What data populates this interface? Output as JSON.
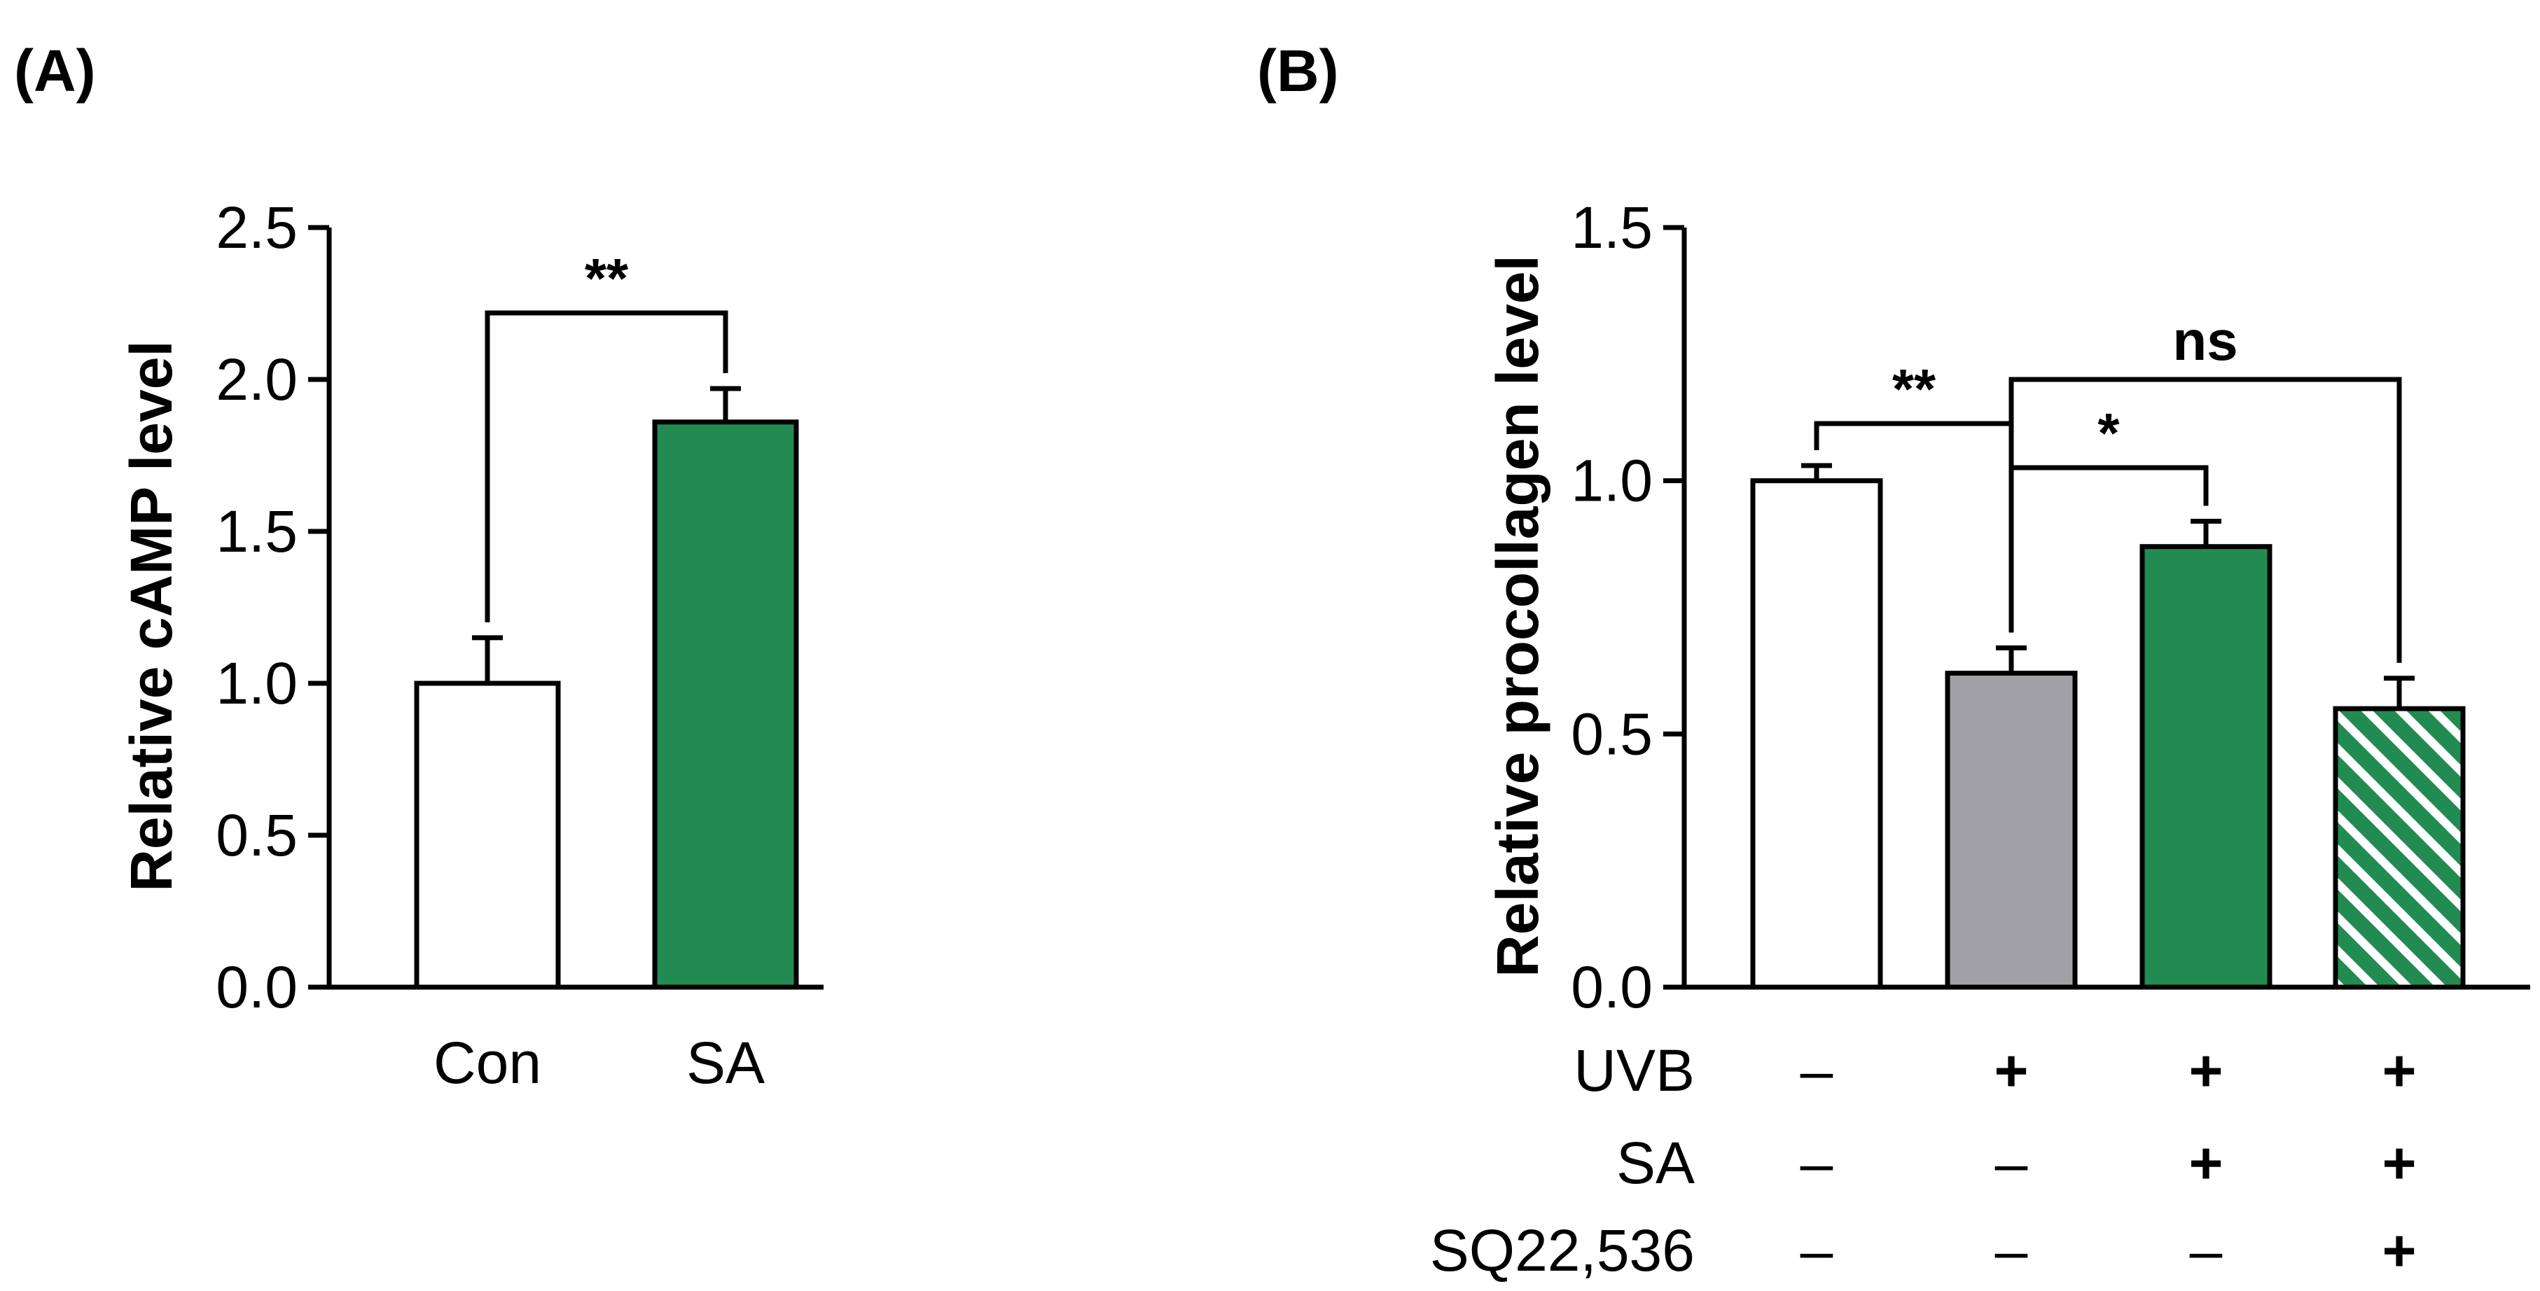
{
  "chart_data": [
    {
      "panel_label": "(A)",
      "type": "bar",
      "ylabel": "Relative cAMP level",
      "ylim": [
        0,
        2.5
      ],
      "yticks": [
        "0.0",
        "0.5",
        "1.0",
        "1.5",
        "2.0",
        "2.5"
      ],
      "categories": [
        "Con",
        "SA"
      ],
      "values": [
        1.0,
        1.86
      ],
      "errors": [
        0.15,
        0.11
      ],
      "colors": [
        "#ffffff",
        "#228b52"
      ],
      "patterns": [
        "solid",
        "solid"
      ],
      "significance": [
        {
          "from": 0,
          "to": 1,
          "label": "**"
        }
      ]
    },
    {
      "panel_label": "(B)",
      "type": "bar",
      "ylabel": "Relative procollagen level",
      "ylim": [
        0,
        1.5
      ],
      "yticks": [
        "0.0",
        "0.5",
        "1.0",
        "1.5"
      ],
      "values": [
        1.0,
        0.62,
        0.87,
        0.55
      ],
      "errors": [
        0.03,
        0.05,
        0.05,
        0.06
      ],
      "colors": [
        "#ffffff",
        "#a1a1a5",
        "#228b52",
        "#228b52"
      ],
      "patterns": [
        "solid",
        "solid",
        "solid",
        "hatched"
      ],
      "conditions": [
        {
          "label": "UVB",
          "values": [
            "–",
            "+",
            "+",
            "+"
          ]
        },
        {
          "label": "SA",
          "values": [
            "–",
            "–",
            "+",
            "+"
          ]
        },
        {
          "label": "SQ22,536",
          "values": [
            "–",
            "–",
            "–",
            "+"
          ]
        }
      ],
      "significance": [
        {
          "from": 0,
          "to": 1,
          "label": "**"
        },
        {
          "from": 1,
          "to": 2,
          "label": "*"
        },
        {
          "from": 1,
          "to": 3,
          "label": "ns"
        }
      ]
    }
  ]
}
